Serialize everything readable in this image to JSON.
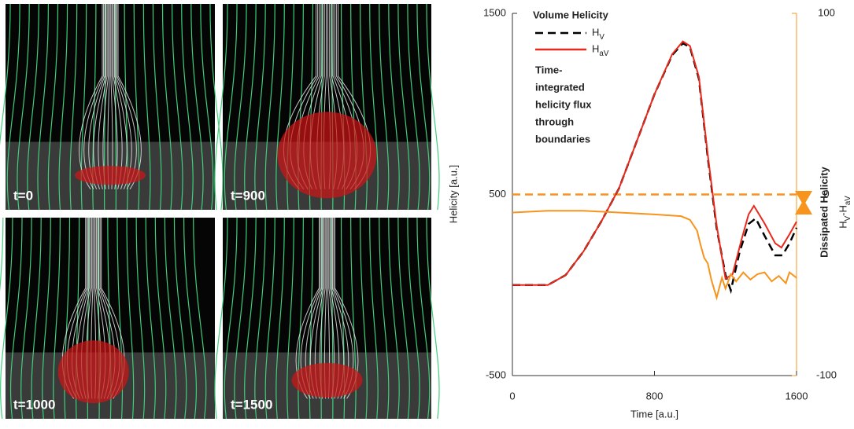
{
  "panels": [
    "t=0",
    "t=900",
    "t=1000",
    "t=1500"
  ],
  "chart_data": {
    "type": "line",
    "xlabel": "Time [a.u.]",
    "ylabel": "Helicity [a.u.]",
    "y2label": "Dissipated Helicity",
    "y2sublabel": "HV-HaV",
    "legend_title": "Volume Helicity",
    "annotation": [
      "Time-",
      "integrated",
      "helicity flux",
      "through",
      "boundaries"
    ],
    "xlim": [
      0,
      1600
    ],
    "xticks": [
      0,
      800,
      1600
    ],
    "ylim": [
      -500,
      1500
    ],
    "yticks": [
      -500,
      500,
      1500
    ],
    "y2lim": [
      -100,
      100
    ],
    "y2ticks": [
      -100,
      0,
      100
    ],
    "y2_reference": 0,
    "series": [
      {
        "name": "HV",
        "color": "#000000",
        "dash": true,
        "x": [
          0,
          200,
          300,
          400,
          500,
          600,
          700,
          800,
          900,
          960,
          1000,
          1050,
          1100,
          1150,
          1200,
          1230,
          1280,
          1330,
          1370,
          1420,
          1480,
          1520,
          1560,
          1600
        ],
        "values": [
          0,
          0,
          55,
          185,
          350,
          533,
          793,
          1053,
          1270,
          1335,
          1313,
          1140,
          706,
          316,
          55,
          -30,
          185,
          337,
          368,
          272,
          164,
          164,
          229,
          316
        ]
      },
      {
        "name": "HaV",
        "color": "#e8291c",
        "dash": false,
        "x": [
          0,
          200,
          300,
          400,
          500,
          600,
          700,
          800,
          900,
          960,
          1000,
          1050,
          1100,
          1150,
          1200,
          1240,
          1290,
          1330,
          1360,
          1420,
          1480,
          1515,
          1560,
          1600
        ],
        "values": [
          0,
          0,
          55,
          185,
          350,
          533,
          793,
          1053,
          1275,
          1345,
          1320,
          1150,
          720,
          330,
          35,
          60,
          250,
          390,
          437,
          340,
          230,
          207,
          280,
          350
        ]
      },
      {
        "name": "HV-HaV",
        "color": "#f7941d",
        "dash": false,
        "axis": "y2",
        "x": [
          0,
          200,
          400,
          600,
          800,
          950,
          1000,
          1040,
          1060,
          1080,
          1100,
          1120,
          1150,
          1180,
          1200,
          1230,
          1260,
          1300,
          1340,
          1380,
          1420,
          1460,
          1500,
          1540,
          1560,
          1600
        ],
        "values": [
          -10,
          -9,
          -9,
          -10,
          -11,
          -12,
          -14,
          -20,
          -28,
          -35,
          -38,
          -47,
          -57,
          -46,
          -52,
          -44,
          -48,
          -43,
          -47,
          -44,
          -43,
          -48,
          -45,
          -49,
          -43,
          -46
        ]
      }
    ]
  }
}
